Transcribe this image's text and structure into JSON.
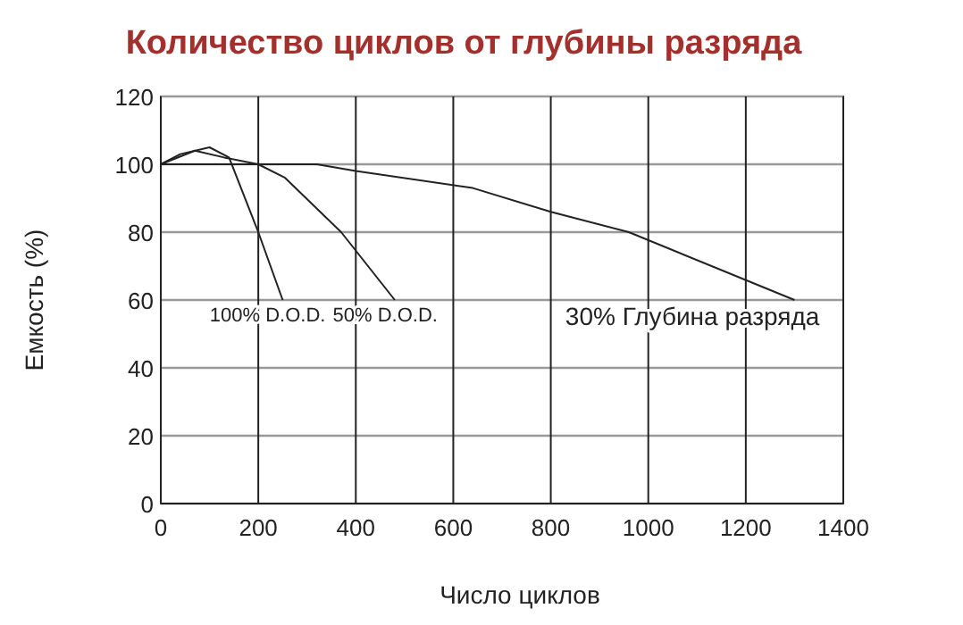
{
  "chart_data": {
    "type": "line",
    "title": "Количество циклов от глубины разряда",
    "xlabel": "Число циклов",
    "ylabel": "Емкость (%)",
    "xlim": [
      0,
      1400
    ],
    "xticks": [
      0,
      200,
      400,
      600,
      800,
      1000,
      1200,
      1400
    ],
    "ylim": [
      0,
      120
    ],
    "yticks": [
      0,
      20,
      40,
      60,
      80,
      100,
      120
    ],
    "grid": true,
    "marker": "none",
    "line_style": "solid",
    "series": [
      {
        "name": "100% D.O.D.",
        "color": "#222222",
        "x": [
          0,
          40,
          100,
          140,
          200,
          250
        ],
        "values": [
          100,
          103,
          105,
          102,
          80,
          60
        ]
      },
      {
        "name": "50% D.O.D.",
        "color": "#222222",
        "x": [
          0,
          70,
          130,
          200,
          255,
          370,
          480
        ],
        "values": [
          100,
          104,
          102,
          100,
          96,
          80,
          60
        ]
      },
      {
        "name": "30% Глубина разряда",
        "color": "#222222",
        "x": [
          0,
          320,
          400,
          640,
          800,
          960,
          1300
        ],
        "values": [
          100,
          100,
          98,
          93,
          86,
          80,
          60
        ]
      }
    ]
  }
}
